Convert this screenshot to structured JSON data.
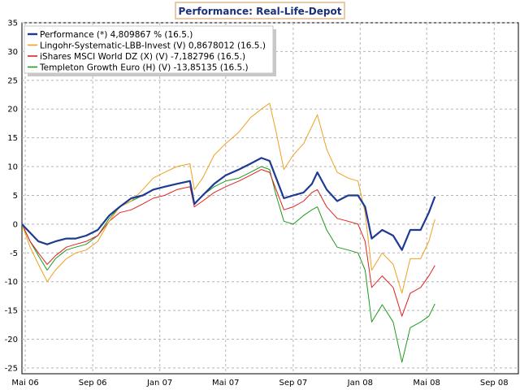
{
  "chart_data": {
    "type": "line",
    "title": "Performance: Real-Life-Depot",
    "xlabel": "",
    "ylabel": "",
    "ylim": [
      -26,
      35
    ],
    "xlim": [
      "2006-04-25",
      "2008-10-15"
    ],
    "grid": true,
    "legend_position": "top-left",
    "x_ticks": [
      {
        "date": "2006-05-01",
        "label": "Mai 06"
      },
      {
        "date": "2006-09-01",
        "label": "Sep 06"
      },
      {
        "date": "2007-01-01",
        "label": "Jan 07"
      },
      {
        "date": "2007-05-01",
        "label": "Mai 07"
      },
      {
        "date": "2007-09-01",
        "label": "Sep 07"
      },
      {
        "date": "2008-01-01",
        "label": "Jan 08"
      },
      {
        "date": "2008-05-01",
        "label": "Mai 08"
      },
      {
        "date": "2008-09-01",
        "label": "Sep 08"
      }
    ],
    "y_ticks": [
      35,
      30,
      25,
      20,
      15,
      10,
      5,
      0,
      -5,
      -10,
      -15,
      -20,
      -25
    ],
    "series": [
      {
        "name": "Performance (*) 4,809867 % (16.5.)",
        "color": "#1f3a93",
        "width": 2.2,
        "points": [
          [
            "2006-04-25",
            0.0
          ],
          [
            "2006-05-10",
            -1.5
          ],
          [
            "2006-05-25",
            -3.0
          ],
          [
            "2006-06-10",
            -3.5
          ],
          [
            "2006-06-25",
            -3.0
          ],
          [
            "2006-07-15",
            -2.5
          ],
          [
            "2006-08-01",
            -2.5
          ],
          [
            "2006-08-20",
            -2.0
          ],
          [
            "2006-09-10",
            -1.0
          ],
          [
            "2006-10-01",
            1.5
          ],
          [
            "2006-10-20",
            3.0
          ],
          [
            "2006-11-10",
            4.5
          ],
          [
            "2006-12-01",
            5.0
          ],
          [
            "2006-12-20",
            6.0
          ],
          [
            "2007-01-10",
            6.5
          ],
          [
            "2007-02-01",
            7.0
          ],
          [
            "2007-02-25",
            7.5
          ],
          [
            "2007-03-05",
            3.5
          ],
          [
            "2007-03-20",
            5.0
          ],
          [
            "2007-04-10",
            7.0
          ],
          [
            "2007-05-01",
            8.5
          ],
          [
            "2007-05-25",
            9.5
          ],
          [
            "2007-06-15",
            10.5
          ],
          [
            "2007-07-05",
            11.5
          ],
          [
            "2007-07-20",
            11.0
          ],
          [
            "2007-08-01",
            8.0
          ],
          [
            "2007-08-15",
            4.5
          ],
          [
            "2007-09-01",
            5.0
          ],
          [
            "2007-09-20",
            5.5
          ],
          [
            "2007-10-05",
            7.0
          ],
          [
            "2007-10-15",
            9.0
          ],
          [
            "2007-11-01",
            6.0
          ],
          [
            "2007-11-20",
            4.0
          ],
          [
            "2007-12-10",
            5.0
          ],
          [
            "2007-12-28",
            5.0
          ],
          [
            "2008-01-10",
            3.0
          ],
          [
            "2008-01-22",
            -2.5
          ],
          [
            "2008-02-10",
            -1.0
          ],
          [
            "2008-03-01",
            -2.0
          ],
          [
            "2008-03-17",
            -4.5
          ],
          [
            "2008-04-01",
            -1.0
          ],
          [
            "2008-04-20",
            -1.0
          ],
          [
            "2008-05-05",
            2.0
          ],
          [
            "2008-05-16",
            4.8
          ]
        ]
      },
      {
        "name": "Lingohr-Systematic-LBB-Invest (V) 0,8678012 (16.5.)",
        "color": "#f0a020",
        "width": 1,
        "points": [
          [
            "2006-04-25",
            0.0
          ],
          [
            "2006-05-10",
            -4.0
          ],
          [
            "2006-05-25",
            -7.0
          ],
          [
            "2006-06-10",
            -10.0
          ],
          [
            "2006-06-25",
            -8.0
          ],
          [
            "2006-07-15",
            -6.0
          ],
          [
            "2006-08-01",
            -5.0
          ],
          [
            "2006-08-20",
            -4.5
          ],
          [
            "2006-09-10",
            -3.0
          ],
          [
            "2006-10-01",
            0.5
          ],
          [
            "2006-10-20",
            3.0
          ],
          [
            "2006-11-10",
            4.0
          ],
          [
            "2006-12-01",
            6.0
          ],
          [
            "2006-12-20",
            8.0
          ],
          [
            "2007-01-10",
            9.0
          ],
          [
            "2007-02-01",
            10.0
          ],
          [
            "2007-02-25",
            10.5
          ],
          [
            "2007-03-05",
            6.0
          ],
          [
            "2007-03-20",
            8.0
          ],
          [
            "2007-04-10",
            12.0
          ],
          [
            "2007-05-01",
            14.0
          ],
          [
            "2007-05-25",
            16.0
          ],
          [
            "2007-06-15",
            18.5
          ],
          [
            "2007-07-05",
            20.0
          ],
          [
            "2007-07-20",
            21.0
          ],
          [
            "2007-08-01",
            16.0
          ],
          [
            "2007-08-15",
            9.5
          ],
          [
            "2007-09-01",
            12.0
          ],
          [
            "2007-09-20",
            14.0
          ],
          [
            "2007-10-05",
            17.0
          ],
          [
            "2007-10-15",
            19.0
          ],
          [
            "2007-11-01",
            13.0
          ],
          [
            "2007-11-20",
            9.0
          ],
          [
            "2007-12-10",
            8.0
          ],
          [
            "2007-12-28",
            7.5
          ],
          [
            "2008-01-10",
            2.0
          ],
          [
            "2008-01-22",
            -8.0
          ],
          [
            "2008-02-10",
            -5.0
          ],
          [
            "2008-03-01",
            -7.0
          ],
          [
            "2008-03-17",
            -12.0
          ],
          [
            "2008-04-01",
            -6.0
          ],
          [
            "2008-04-20",
            -6.0
          ],
          [
            "2008-05-05",
            -3.0
          ],
          [
            "2008-05-16",
            0.87
          ]
        ]
      },
      {
        "name": "iShares MSCI World DZ (X) (V) -7,182796 (16.5.)",
        "color": "#e02020",
        "width": 1,
        "points": [
          [
            "2006-04-25",
            0.0
          ],
          [
            "2006-05-10",
            -3.0
          ],
          [
            "2006-05-25",
            -5.0
          ],
          [
            "2006-06-10",
            -7.0
          ],
          [
            "2006-06-25",
            -5.5
          ],
          [
            "2006-07-15",
            -4.0
          ],
          [
            "2006-08-01",
            -3.5
          ],
          [
            "2006-08-20",
            -3.0
          ],
          [
            "2006-09-10",
            -2.0
          ],
          [
            "2006-10-01",
            0.5
          ],
          [
            "2006-10-20",
            2.0
          ],
          [
            "2006-11-10",
            2.5
          ],
          [
            "2006-12-01",
            3.5
          ],
          [
            "2006-12-20",
            4.5
          ],
          [
            "2007-01-10",
            5.0
          ],
          [
            "2007-02-01",
            6.0
          ],
          [
            "2007-02-25",
            6.5
          ],
          [
            "2007-03-05",
            3.0
          ],
          [
            "2007-03-20",
            4.0
          ],
          [
            "2007-04-10",
            5.5
          ],
          [
            "2007-05-01",
            6.5
          ],
          [
            "2007-05-25",
            7.5
          ],
          [
            "2007-06-15",
            8.5
          ],
          [
            "2007-07-05",
            9.5
          ],
          [
            "2007-07-20",
            9.0
          ],
          [
            "2007-08-01",
            6.0
          ],
          [
            "2007-08-15",
            2.5
          ],
          [
            "2007-09-01",
            3.0
          ],
          [
            "2007-09-20",
            4.0
          ],
          [
            "2007-10-05",
            5.5
          ],
          [
            "2007-10-15",
            6.0
          ],
          [
            "2007-11-01",
            3.0
          ],
          [
            "2007-11-20",
            1.0
          ],
          [
            "2007-12-10",
            0.5
          ],
          [
            "2007-12-28",
            0.0
          ],
          [
            "2008-01-10",
            -3.0
          ],
          [
            "2008-01-22",
            -11.0
          ],
          [
            "2008-02-10",
            -9.0
          ],
          [
            "2008-03-01",
            -11.0
          ],
          [
            "2008-03-17",
            -16.0
          ],
          [
            "2008-04-01",
            -12.0
          ],
          [
            "2008-04-20",
            -11.0
          ],
          [
            "2008-05-05",
            -9.0
          ],
          [
            "2008-05-16",
            -7.18
          ]
        ]
      },
      {
        "name": "Templeton Growth Euro (H) (V) -13,85135 (16.5.)",
        "color": "#1e9a1e",
        "width": 1,
        "points": [
          [
            "2006-04-25",
            0.0
          ],
          [
            "2006-05-10",
            -3.0
          ],
          [
            "2006-05-25",
            -5.5
          ],
          [
            "2006-06-10",
            -8.0
          ],
          [
            "2006-06-25",
            -6.0
          ],
          [
            "2006-07-15",
            -4.5
          ],
          [
            "2006-08-01",
            -4.0
          ],
          [
            "2006-08-20",
            -3.5
          ],
          [
            "2006-09-10",
            -2.0
          ],
          [
            "2006-10-01",
            1.0
          ],
          [
            "2006-10-20",
            3.0
          ],
          [
            "2006-11-10",
            4.0
          ],
          [
            "2006-12-01",
            5.0
          ],
          [
            "2006-12-20",
            6.0
          ],
          [
            "2007-01-10",
            6.5
          ],
          [
            "2007-02-01",
            7.0
          ],
          [
            "2007-02-25",
            7.5
          ],
          [
            "2007-03-05",
            3.5
          ],
          [
            "2007-03-20",
            5.0
          ],
          [
            "2007-04-10",
            6.5
          ],
          [
            "2007-05-01",
            7.5
          ],
          [
            "2007-05-25",
            8.0
          ],
          [
            "2007-06-15",
            9.0
          ],
          [
            "2007-07-05",
            10.0
          ],
          [
            "2007-07-20",
            9.5
          ],
          [
            "2007-08-01",
            5.0
          ],
          [
            "2007-08-15",
            0.5
          ],
          [
            "2007-09-01",
            0.0
          ],
          [
            "2007-09-20",
            1.5
          ],
          [
            "2007-10-05",
            2.5
          ],
          [
            "2007-10-15",
            3.0
          ],
          [
            "2007-11-01",
            -1.0
          ],
          [
            "2007-11-20",
            -4.0
          ],
          [
            "2007-12-10",
            -4.5
          ],
          [
            "2007-12-28",
            -5.0
          ],
          [
            "2008-01-10",
            -8.0
          ],
          [
            "2008-01-22",
            -17.0
          ],
          [
            "2008-02-10",
            -14.0
          ],
          [
            "2008-03-01",
            -17.0
          ],
          [
            "2008-03-17",
            -24.0
          ],
          [
            "2008-04-01",
            -18.0
          ],
          [
            "2008-04-20",
            -17.0
          ],
          [
            "2008-05-05",
            -16.0
          ],
          [
            "2008-05-16",
            -13.85
          ]
        ]
      }
    ]
  }
}
